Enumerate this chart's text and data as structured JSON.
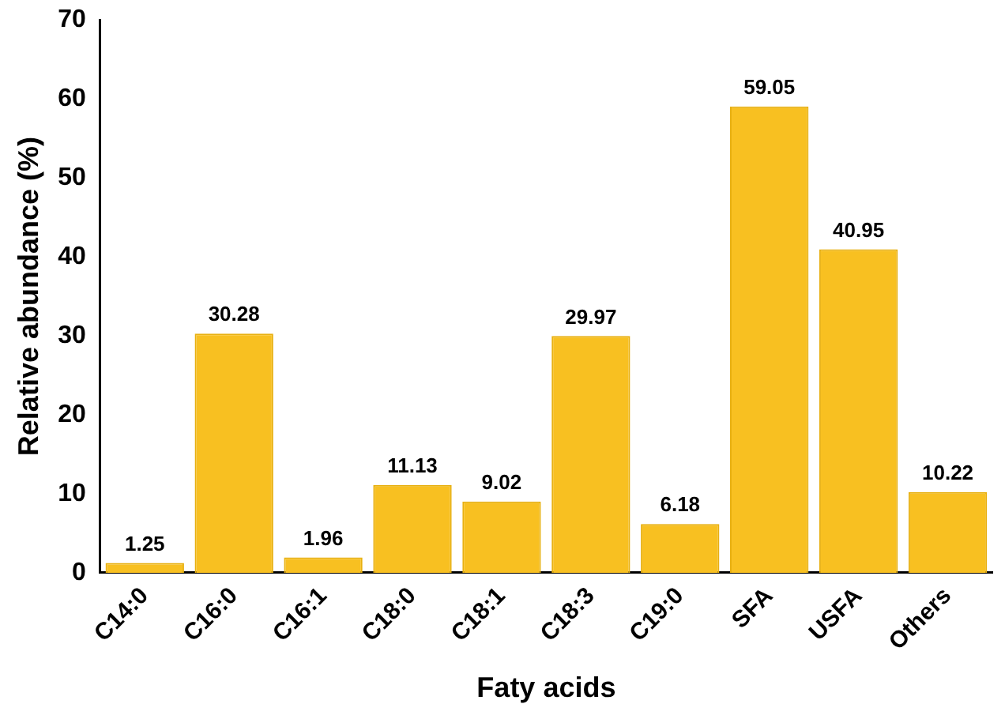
{
  "chart_data": {
    "type": "bar",
    "xlabel": "Faty acids",
    "ylabel": "Relative abundance (%)",
    "categories": [
      "C14:0",
      "C16:0",
      "C16:1",
      "C18:0",
      "C18:1",
      "C18:3",
      "C19:0",
      "SFA",
      "USFA",
      "Others"
    ],
    "values": [
      1.25,
      30.28,
      1.96,
      11.13,
      9.02,
      29.97,
      6.18,
      59.05,
      40.95,
      10.22
    ],
    "color": "#f8c021",
    "ylim": [
      0,
      70
    ],
    "yticks": [
      0,
      10,
      20,
      30,
      40,
      50,
      60,
      70
    ],
    "grid": false,
    "legend": false,
    "data_labels": true
  }
}
